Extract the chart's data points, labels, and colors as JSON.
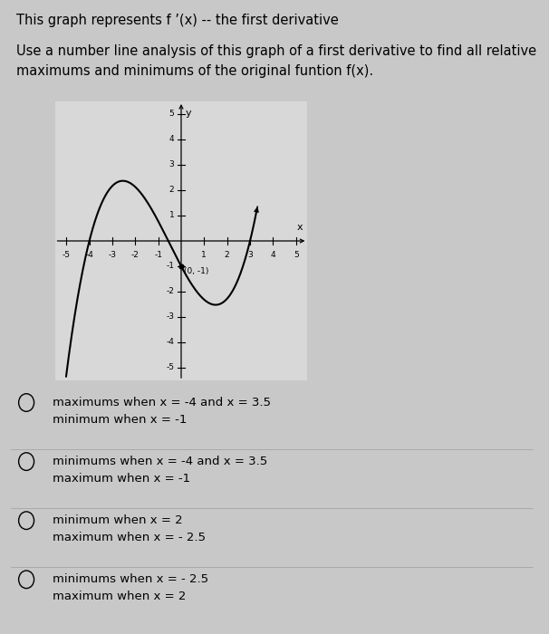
{
  "title_line1": "This graph represents f ’(x) -- the first derivative",
  "subtitle_line1": "Use a number line analysis of this graph of a first derivative to find all relative",
  "subtitle_line2": "maximums and minimums of the original funtion f(x).",
  "point_label": "(0, -1)",
  "point_x": 0,
  "point_y": -1,
  "xlim": [
    -5.5,
    5.5
  ],
  "ylim": [
    -5.5,
    5.5
  ],
  "xlabel": "x",
  "ylabel": "y",
  "xticks": [
    -5,
    -4,
    -3,
    -2,
    -1,
    1,
    2,
    3,
    4,
    5
  ],
  "yticks": [
    -5,
    -4,
    -3,
    -2,
    -1,
    1,
    2,
    3,
    4,
    5
  ],
  "bg_color": "#d8d8d8",
  "curve_color": "#000000",
  "fig_bg": "#c8c8c8",
  "options": [
    [
      "maximums when x = -4 and x = 3.5",
      "minimum when x = -1"
    ],
    [
      "minimums when x = -4 and x = 3.5",
      "maximum when x = -1"
    ],
    [
      "minimum when x = 2",
      "maximum when x = - 2.5"
    ],
    [
      "minimums when x = - 2.5",
      "maximum when x = 2"
    ]
  ]
}
